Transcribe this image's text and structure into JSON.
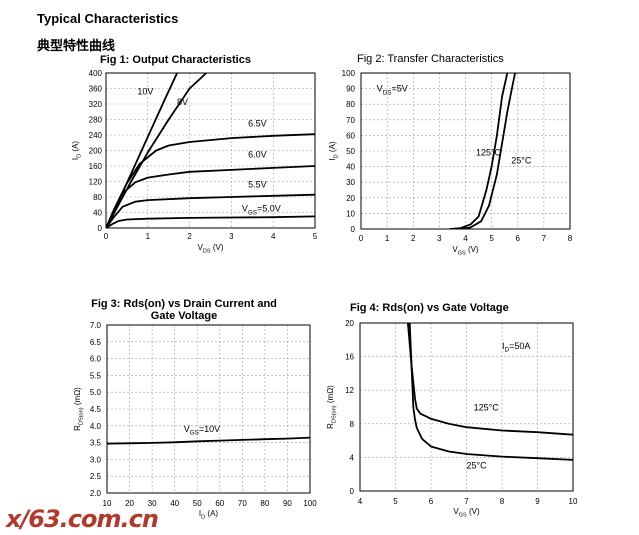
{
  "header": {
    "title_en": "Typical Characteristics",
    "title_cn": "典型特性曲线"
  },
  "watermark": "x/63.com.cn",
  "chart_data": [
    {
      "id": "fig1",
      "type": "line",
      "title": "Fig 1: Output Characteristics",
      "xlabel_main": "V",
      "xlabel_sub": "DS",
      "xlabel_unit": " (V)",
      "ylabel_main": "I",
      "ylabel_sub": "D",
      "ylabel_unit": " (A)",
      "xlim": [
        0,
        5
      ],
      "ylim": [
        0,
        400
      ],
      "xticks": [
        0,
        1,
        2,
        3,
        4,
        5
      ],
      "yticks": [
        0,
        40,
        80,
        120,
        160,
        200,
        240,
        280,
        320,
        360,
        400
      ],
      "grid": true,
      "series": [
        {
          "name": "10V",
          "x": [
            0,
            0.3,
            0.6,
            1.0,
            1.4,
            1.7
          ],
          "y": [
            0,
            70,
            140,
            235,
            330,
            400
          ]
        },
        {
          "name": "8V",
          "x": [
            0,
            0.3,
            0.6,
            1.0,
            1.5,
            2.0,
            2.4
          ],
          "y": [
            0,
            60,
            120,
            195,
            280,
            360,
            400
          ]
        },
        {
          "name": "6.5V",
          "x": [
            0,
            0.2,
            0.5,
            0.8,
            1.2,
            1.5,
            2.0,
            3.0,
            4.0,
            5.0
          ],
          "y": [
            0,
            50,
            115,
            165,
            200,
            213,
            222,
            232,
            238,
            242
          ]
        },
        {
          "name": "6.0V",
          "x": [
            0,
            0.2,
            0.4,
            0.7,
            1.0,
            1.5,
            2.0,
            3.0,
            4.0,
            5.0
          ],
          "y": [
            0,
            45,
            90,
            118,
            130,
            138,
            145,
            150,
            155,
            160
          ]
        },
        {
          "name": "5.5V",
          "x": [
            0,
            0.2,
            0.4,
            0.7,
            1.0,
            2.0,
            3.0,
            4.0,
            5.0
          ],
          "y": [
            0,
            30,
            55,
            68,
            72,
            77,
            80,
            83,
            86
          ]
        },
        {
          "name": "5.0V",
          "x": [
            0,
            0.15,
            0.3,
            0.5,
            1.0,
            2.0,
            3.0,
            4.0,
            5.0
          ],
          "y": [
            0,
            10,
            18,
            22,
            24,
            26,
            27,
            28,
            30
          ]
        }
      ],
      "annotations": [
        {
          "text": "10V",
          "x": 0.75,
          "y": 345
        },
        {
          "text": "8V",
          "x": 1.7,
          "y": 318
        },
        {
          "text": "6.5V",
          "x": 3.4,
          "y": 262
        },
        {
          "text": "6.0V",
          "x": 3.4,
          "y": 182
        },
        {
          "text": "5.5V",
          "x": 3.4,
          "y": 105
        },
        {
          "text": "V",
          "sub": "GS",
          "tail": "=5.0V",
          "x": 3.25,
          "y": 42
        }
      ]
    },
    {
      "id": "fig2",
      "type": "line",
      "title": "Fig 2: Transfer Characteristics",
      "xlabel_main": "V",
      "xlabel_sub": "GS",
      "xlabel_unit": " (V)",
      "ylabel_main": "I",
      "ylabel_sub": "D",
      "ylabel_unit": " (A)",
      "xlim": [
        0,
        8
      ],
      "ylim": [
        0,
        100
      ],
      "xticks": [
        0,
        1,
        2,
        3,
        4,
        5,
        6,
        7,
        8
      ],
      "yticks": [
        0,
        10,
        20,
        30,
        40,
        50,
        60,
        70,
        80,
        90,
        100
      ],
      "grid": true,
      "series": [
        {
          "name": "125°C",
          "x": [
            3.4,
            3.8,
            4.2,
            4.5,
            4.8,
            5.0,
            5.2,
            5.4,
            5.6
          ],
          "y": [
            0,
            0.5,
            3,
            8,
            25,
            40,
            60,
            85,
            100
          ]
        },
        {
          "name": "25°C",
          "x": [
            3.8,
            4.2,
            4.6,
            4.9,
            5.2,
            5.4,
            5.6,
            5.8,
            5.9
          ],
          "y": [
            0,
            1,
            5,
            15,
            35,
            55,
            75,
            92,
            100
          ]
        }
      ],
      "annotations": [
        {
          "text": "V",
          "sub": "DS",
          "tail": "=5V",
          "x": 0.6,
          "y": 88
        },
        {
          "text": "125°C",
          "x": 4.4,
          "y": 47
        },
        {
          "text": "25°C",
          "x": 5.75,
          "y": 42
        }
      ]
    },
    {
      "id": "fig3",
      "type": "line",
      "title": "Fig 3: Rds(on) vs Drain Current and",
      "title_line2": "Gate Voltage",
      "xlabel_main": "I",
      "xlabel_sub": "D",
      "xlabel_unit": " (A)",
      "ylabel_main": "R",
      "ylabel_sub": "DS(on)",
      "ylabel_unit": " (mΩ)",
      "xlim": [
        10,
        100
      ],
      "ylim": [
        2.0,
        7.0
      ],
      "xticks": [
        10,
        20,
        30,
        40,
        50,
        60,
        70,
        80,
        90,
        100
      ],
      "yticks": [
        "2.0",
        "2.5",
        "3.0",
        "3.5",
        "4.0",
        "4.5",
        "5.0",
        "5.5",
        "6.0",
        "6.5",
        "7.0"
      ],
      "grid": true,
      "series": [
        {
          "name": "VGS=10V",
          "x": [
            10,
            20,
            30,
            40,
            50,
            60,
            70,
            80,
            90,
            100
          ],
          "y": [
            3.47,
            3.48,
            3.49,
            3.51,
            3.54,
            3.56,
            3.58,
            3.6,
            3.62,
            3.65
          ]
        }
      ],
      "annotations": [
        {
          "text": "V",
          "sub": "GS",
          "tail": "=10V",
          "x": 44,
          "y": 3.82
        }
      ]
    },
    {
      "id": "fig4",
      "type": "line",
      "title": "Fig 4: Rds(on) vs Gate Voltage",
      "xlabel_main": "V",
      "xlabel_sub": "GS",
      "xlabel_unit": " (V)",
      "ylabel_main": "R",
      "ylabel_sub": "DS(on)",
      "ylabel_unit": " (mΩ)",
      "xlim": [
        4,
        10
      ],
      "ylim": [
        0,
        20
      ],
      "xticks": [
        4,
        5,
        6,
        7,
        8,
        9,
        10
      ],
      "yticks": [
        0,
        4,
        8,
        12,
        16,
        20
      ],
      "grid": true,
      "series": [
        {
          "name": "125°C",
          "x": [
            5.35,
            5.45,
            5.55,
            5.6,
            5.7,
            5.85,
            6.0,
            6.5,
            7.0,
            8.0,
            9.0,
            10.0
          ],
          "y": [
            20,
            15,
            11,
            9.8,
            9.2,
            8.9,
            8.6,
            8.0,
            7.6,
            7.2,
            7.0,
            6.7
          ]
        },
        {
          "name": "25°C",
          "x": [
            5.4,
            5.45,
            5.5,
            5.55,
            5.6,
            5.75,
            6.0,
            6.5,
            7.0,
            8.0,
            9.0,
            10.0
          ],
          "y": [
            20,
            15,
            10,
            8.5,
            7.5,
            6.2,
            5.3,
            4.7,
            4.4,
            4.1,
            3.9,
            3.7
          ]
        }
      ],
      "annotations": [
        {
          "text": "I",
          "sub": "D",
          "tail": "=50A",
          "x": 8.0,
          "y": 16.9
        },
        {
          "text": "125°C",
          "x": 7.2,
          "y": 9.6
        },
        {
          "text": "25°C",
          "x": 7.0,
          "y": 2.7
        }
      ]
    }
  ]
}
